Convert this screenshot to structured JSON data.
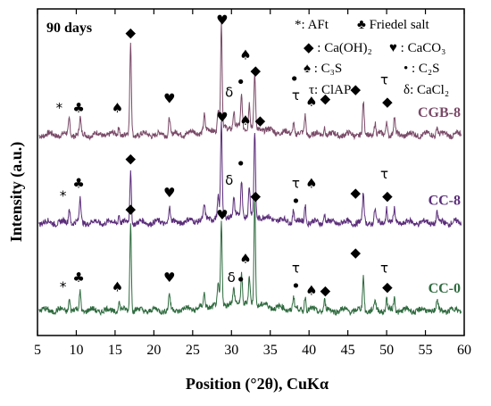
{
  "chart_data": {
    "type": "line",
    "title": "90 days",
    "xlabel": "Position (°2θ), CuKα",
    "ylabel": "Intensity (a.u.)",
    "xlim": [
      5,
      60
    ],
    "xticks": [
      5,
      10,
      15,
      20,
      25,
      30,
      35,
      40,
      45,
      50,
      55,
      60
    ],
    "yticks_shown": false,
    "legend_key": [
      {
        "symbol": "*",
        "text": "*: AFt"
      },
      {
        "symbol": "♣",
        "text": "♣ Friedel salt"
      },
      {
        "symbol": "◆",
        "text": "◆ : Ca(OH)₂"
      },
      {
        "symbol": "♥",
        "text": "♥ : CaCO₃"
      },
      {
        "symbol": "♠",
        "text": "♠ : C₃S"
      },
      {
        "symbol": "•",
        "text": "• : C₂S"
      },
      {
        "symbol": "τ",
        "text": "τ: ClAP"
      },
      {
        "symbol": "δ",
        "text": "δ: CaCl₂"
      }
    ],
    "series": [
      {
        "name": "CGB-8",
        "color": "#7a4a68",
        "baseline": 3.0,
        "peaks": [
          {
            "x": 9.1,
            "h": 0.25
          },
          {
            "x": 10.5,
            "h": 0.25
          },
          {
            "x": 15.5,
            "h": 0.15
          },
          {
            "x": 17.0,
            "h": 1.45
          },
          {
            "x": 22.0,
            "h": 0.3
          },
          {
            "x": 26.5,
            "h": 0.25
          },
          {
            "x": 28.3,
            "h": 0.35
          },
          {
            "x": 28.7,
            "h": 1.65
          },
          {
            "x": 30.3,
            "h": 0.25
          },
          {
            "x": 31.3,
            "h": 0.5
          },
          {
            "x": 32.3,
            "h": 0.4
          },
          {
            "x": 33.0,
            "h": 0.85
          },
          {
            "x": 38.0,
            "h": 0.2
          },
          {
            "x": 39.5,
            "h": 0.3
          },
          {
            "x": 42.0,
            "h": 0.15
          },
          {
            "x": 47.0,
            "h": 0.5
          },
          {
            "x": 48.5,
            "h": 0.2
          },
          {
            "x": 50.0,
            "h": 0.25
          },
          {
            "x": 51.0,
            "h": 0.25
          },
          {
            "x": 56.5,
            "h": 0.15
          }
        ]
      },
      {
        "name": "CC-8",
        "color": "#5b2d7a",
        "baseline": 1.6,
        "peaks": [
          {
            "x": 9.1,
            "h": 0.25
          },
          {
            "x": 10.5,
            "h": 0.4
          },
          {
            "x": 15.5,
            "h": 0.15
          },
          {
            "x": 17.0,
            "h": 0.8
          },
          {
            "x": 22.0,
            "h": 0.25
          },
          {
            "x": 26.5,
            "h": 0.2
          },
          {
            "x": 28.3,
            "h": 0.3
          },
          {
            "x": 28.7,
            "h": 1.5
          },
          {
            "x": 30.3,
            "h": 0.25
          },
          {
            "x": 31.3,
            "h": 0.55
          },
          {
            "x": 32.3,
            "h": 0.45
          },
          {
            "x": 33.0,
            "h": 1.35
          },
          {
            "x": 38.0,
            "h": 0.2
          },
          {
            "x": 39.5,
            "h": 0.3
          },
          {
            "x": 42.0,
            "h": 0.15
          },
          {
            "x": 47.0,
            "h": 0.45
          },
          {
            "x": 48.5,
            "h": 0.2
          },
          {
            "x": 50.0,
            "h": 0.25
          },
          {
            "x": 51.0,
            "h": 0.2
          },
          {
            "x": 56.5,
            "h": 0.15
          }
        ]
      },
      {
        "name": "CC-0",
        "color": "#2f6b3f",
        "baseline": 0.2,
        "peaks": [
          {
            "x": 9.1,
            "h": 0.2
          },
          {
            "x": 10.5,
            "h": 0.3
          },
          {
            "x": 15.5,
            "h": 0.15
          },
          {
            "x": 17.0,
            "h": 1.4
          },
          {
            "x": 22.0,
            "h": 0.25
          },
          {
            "x": 26.5,
            "h": 0.2
          },
          {
            "x": 28.3,
            "h": 0.3
          },
          {
            "x": 28.7,
            "h": 1.3
          },
          {
            "x": 30.3,
            "h": 0.2
          },
          {
            "x": 31.3,
            "h": 0.5
          },
          {
            "x": 32.3,
            "h": 0.4
          },
          {
            "x": 33.0,
            "h": 1.65
          },
          {
            "x": 38.0,
            "h": 0.2
          },
          {
            "x": 39.5,
            "h": 0.25
          },
          {
            "x": 42.0,
            "h": 0.15
          },
          {
            "x": 47.0,
            "h": 0.55
          },
          {
            "x": 48.5,
            "h": 0.15
          },
          {
            "x": 50.0,
            "h": 0.2
          },
          {
            "x": 51.0,
            "h": 0.2
          },
          {
            "x": 56.5,
            "h": 0.15
          }
        ]
      }
    ],
    "annotations": [
      {
        "series": "CGB-8",
        "symbol": "*",
        "x": 7.8,
        "y": 3.35
      },
      {
        "series": "CGB-8",
        "symbol": "♣",
        "x": 10.3,
        "y": 3.35
      },
      {
        "series": "CGB-8",
        "symbol": "♠",
        "x": 15.3,
        "y": 3.35
      },
      {
        "series": "CGB-8",
        "symbol": "◆",
        "x": 17.0,
        "y": 4.55
      },
      {
        "series": "CGB-8",
        "symbol": "♥",
        "x": 22.0,
        "y": 3.5
      },
      {
        "series": "CGB-8",
        "symbol": "♥",
        "x": 28.8,
        "y": 4.75
      },
      {
        "series": "CGB-8",
        "symbol": "δ",
        "x": 29.7,
        "y": 3.6
      },
      {
        "series": "CGB-8",
        "symbol": "•",
        "x": 31.2,
        "y": 3.75
      },
      {
        "series": "CGB-8",
        "symbol": "♠",
        "x": 31.8,
        "y": 4.2
      },
      {
        "series": "CGB-8",
        "symbol": "◆",
        "x": 33.1,
        "y": 3.95
      },
      {
        "series": "CGB-8",
        "symbol": "•",
        "x": 38.1,
        "y": 3.8
      },
      {
        "series": "CGB-8",
        "symbol": "τ",
        "x": 38.3,
        "y": 3.55
      },
      {
        "series": "CGB-8",
        "symbol": "♠",
        "x": 40.3,
        "y": 3.45
      },
      {
        "series": "CGB-8",
        "symbol": "◆",
        "x": 42.1,
        "y": 3.5
      },
      {
        "series": "CGB-8",
        "symbol": "◆",
        "x": 46.0,
        "y": 3.65
      },
      {
        "series": "CGB-8",
        "symbol": "τ",
        "x": 49.7,
        "y": 3.8
      },
      {
        "series": "CGB-8",
        "symbol": "◆",
        "x": 50.1,
        "y": 3.45
      },
      {
        "series": "CC-8",
        "symbol": "*",
        "x": 8.3,
        "y": 1.95
      },
      {
        "series": "CC-8",
        "symbol": "♣",
        "x": 10.3,
        "y": 2.15
      },
      {
        "series": "CC-8",
        "symbol": "◆",
        "x": 17.0,
        "y": 2.55
      },
      {
        "series": "CC-8",
        "symbol": "♥",
        "x": 22.0,
        "y": 2.0
      },
      {
        "series": "CC-8",
        "symbol": "♥",
        "x": 28.8,
        "y": 3.2
      },
      {
        "series": "CC-8",
        "symbol": "δ",
        "x": 29.7,
        "y": 2.2
      },
      {
        "series": "CC-8",
        "symbol": "•",
        "x": 31.2,
        "y": 2.45
      },
      {
        "series": "CC-8",
        "symbol": "♠",
        "x": 31.8,
        "y": 3.15
      },
      {
        "series": "CC-8",
        "symbol": "◆",
        "x": 33.7,
        "y": 3.15
      },
      {
        "series": "CC-8",
        "symbol": "τ",
        "x": 38.3,
        "y": 2.15
      },
      {
        "series": "CC-8",
        "symbol": "•",
        "x": 38.3,
        "y": 1.85
      },
      {
        "series": "CC-8",
        "symbol": "♠",
        "x": 40.3,
        "y": 2.15
      },
      {
        "series": "CC-8",
        "symbol": "◆",
        "x": 46.0,
        "y": 2.0
      },
      {
        "series": "CC-8",
        "symbol": "τ",
        "x": 49.7,
        "y": 2.3
      },
      {
        "series": "CC-8",
        "symbol": "◆",
        "x": 50.1,
        "y": 1.95
      },
      {
        "series": "CC-0",
        "symbol": "*",
        "x": 8.3,
        "y": 0.5
      },
      {
        "series": "CC-0",
        "symbol": "♣",
        "x": 10.3,
        "y": 0.65
      },
      {
        "series": "CC-0",
        "symbol": "♠",
        "x": 15.3,
        "y": 0.5
      },
      {
        "series": "CC-0",
        "symbol": "◆",
        "x": 17.0,
        "y": 1.75
      },
      {
        "series": "CC-0",
        "symbol": "♥",
        "x": 22.0,
        "y": 0.65
      },
      {
        "series": "CC-0",
        "symbol": "♥",
        "x": 28.8,
        "y": 1.65
      },
      {
        "series": "CC-0",
        "symbol": "δ",
        "x": 30.0,
        "y": 0.65
      },
      {
        "series": "CC-0",
        "symbol": "•",
        "x": 31.2,
        "y": 0.6
      },
      {
        "series": "CC-0",
        "symbol": "♠",
        "x": 31.8,
        "y": 0.95
      },
      {
        "series": "CC-0",
        "symbol": "◆",
        "x": 33.1,
        "y": 1.95
      },
      {
        "series": "CC-0",
        "symbol": "τ",
        "x": 38.3,
        "y": 0.8
      },
      {
        "series": "CC-0",
        "symbol": "•",
        "x": 38.3,
        "y": 0.5
      },
      {
        "series": "CC-0",
        "symbol": "♠",
        "x": 40.3,
        "y": 0.45
      },
      {
        "series": "CC-0",
        "symbol": "◆",
        "x": 42.1,
        "y": 0.45
      },
      {
        "series": "CC-0",
        "symbol": "◆",
        "x": 46.0,
        "y": 1.05
      },
      {
        "series": "CC-0",
        "symbol": "τ",
        "x": 49.7,
        "y": 0.8
      },
      {
        "series": "CC-0",
        "symbol": "◆",
        "x": 50.1,
        "y": 0.5
      }
    ]
  }
}
